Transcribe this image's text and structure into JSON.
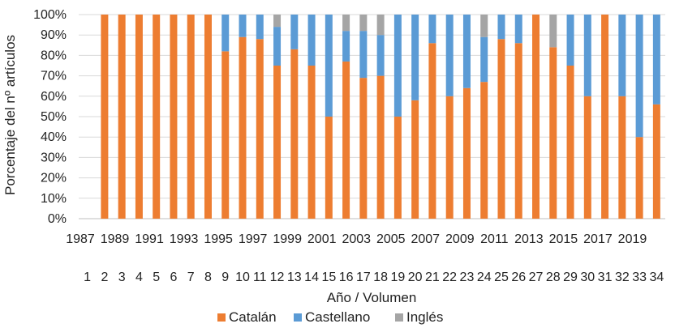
{
  "chart_data": {
    "type": "bar",
    "stacked": "percent",
    "title": "",
    "xlabel": "Año / Volumen",
    "ylabel": "Porcentaje del nº artículos",
    "ylim": [
      0,
      100
    ],
    "yticks": [
      "0%",
      "10%",
      "20%",
      "30%",
      "40%",
      "50%",
      "60%",
      "70%",
      "80%",
      "90%",
      "100%"
    ],
    "volumes": [
      "1",
      "2",
      "3",
      "4",
      "5",
      "6",
      "7",
      "8",
      "9",
      "10",
      "11",
      "12",
      "13",
      "14",
      "15",
      "16",
      "17",
      "18",
      "19",
      "20",
      "21",
      "22",
      "23",
      "24",
      "25",
      "26",
      "27",
      "28",
      "29",
      "30",
      "31",
      "32",
      "33",
      "34"
    ],
    "years": [
      "1987",
      "",
      "1989",
      "",
      "1991",
      "",
      "1993",
      "",
      "1995",
      "",
      "1997",
      "",
      "1999",
      "",
      "2001",
      "",
      "2003",
      "",
      "2005",
      "",
      "2007",
      "",
      "2009",
      "",
      "2011",
      "",
      "2013",
      "",
      "2015",
      "",
      "2017",
      "",
      "2019",
      ""
    ],
    "series": [
      {
        "name": "Catalán",
        "color": "#ED7D31",
        "values": [
          0,
          100,
          100,
          100,
          100,
          100,
          100,
          100,
          82,
          89,
          88,
          75,
          83,
          75,
          50,
          77,
          69,
          70,
          50,
          58,
          86,
          60,
          64,
          67,
          88,
          86,
          100,
          84,
          75,
          60,
          100,
          60,
          40,
          56
        ]
      },
      {
        "name": "Castellano",
        "color": "#5B9BD5",
        "values": [
          0,
          0,
          0,
          0,
          0,
          0,
          0,
          0,
          18,
          11,
          12,
          19,
          17,
          25,
          50,
          15,
          23,
          20,
          50,
          42,
          14,
          40,
          36,
          22,
          12,
          14,
          0,
          0,
          25,
          40,
          0,
          40,
          60,
          44
        ]
      },
      {
        "name": "Inglés",
        "color": "#A5A5A5",
        "values": [
          0,
          0,
          0,
          0,
          0,
          0,
          0,
          0,
          0,
          0,
          0,
          6,
          0,
          0,
          0,
          8,
          8,
          10,
          0,
          0,
          0,
          0,
          0,
          11,
          0,
          0,
          0,
          16,
          0,
          0,
          0,
          0,
          0,
          0
        ]
      }
    ],
    "legend_position": "bottom",
    "grid": true
  }
}
